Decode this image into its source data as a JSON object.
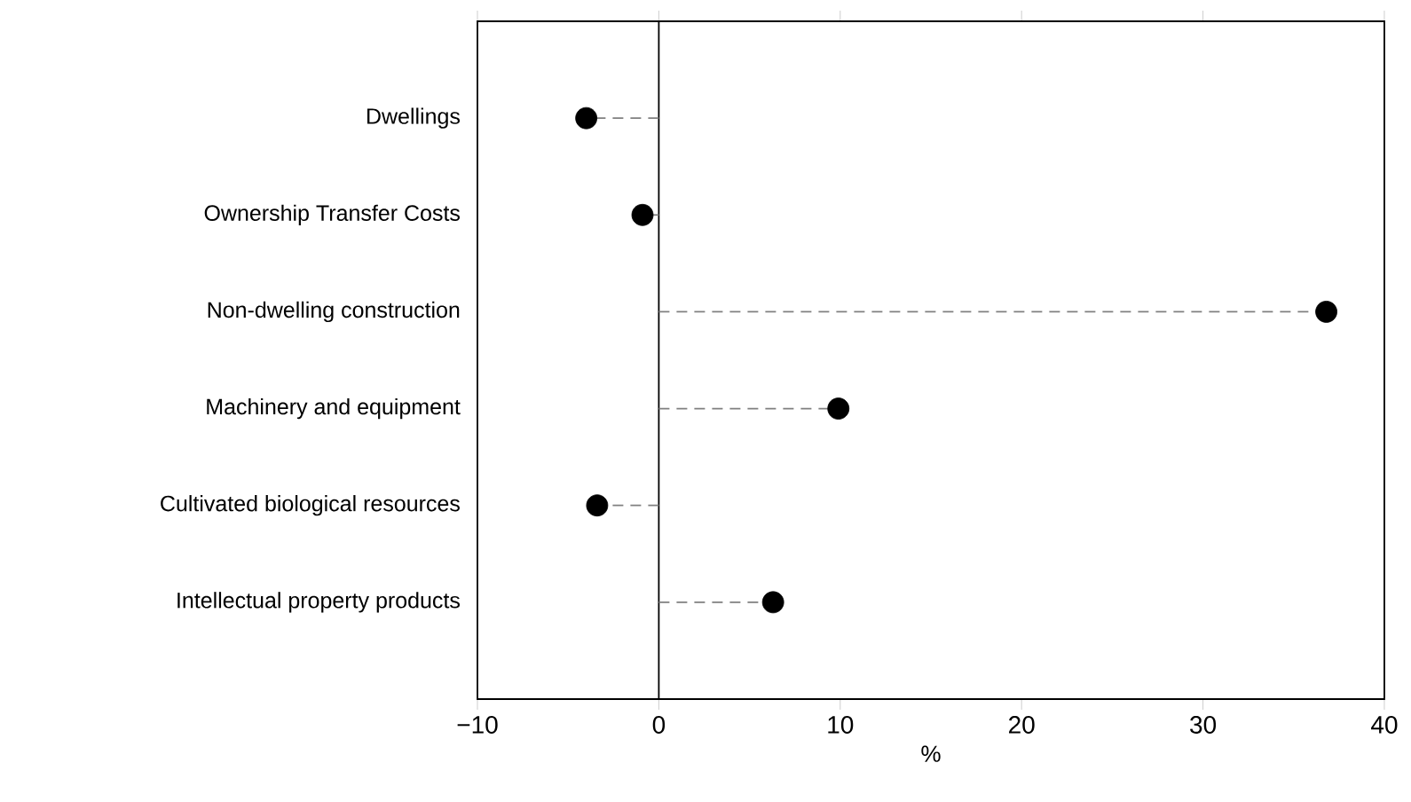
{
  "chart_data": {
    "type": "lollipop",
    "orientation": "horizontal",
    "xlabel": "%",
    "categories": [
      "Dwellings",
      "Ownership Transfer Costs",
      "Non-dwelling construction",
      "Machinery and equipment",
      "Cultivated biological resources",
      "Intellectual property products"
    ],
    "series": [
      {
        "color": "#000000",
        "line_style": "dashed",
        "marker": "circle",
        "values": [
          -4.0,
          -0.9,
          36.8,
          9.9,
          -3.4,
          6.3
        ]
      }
    ],
    "xlim": [
      -10,
      40
    ],
    "xticks": [
      {
        "value": -10,
        "label": "−10"
      },
      0,
      10,
      20,
      30,
      40
    ]
  }
}
